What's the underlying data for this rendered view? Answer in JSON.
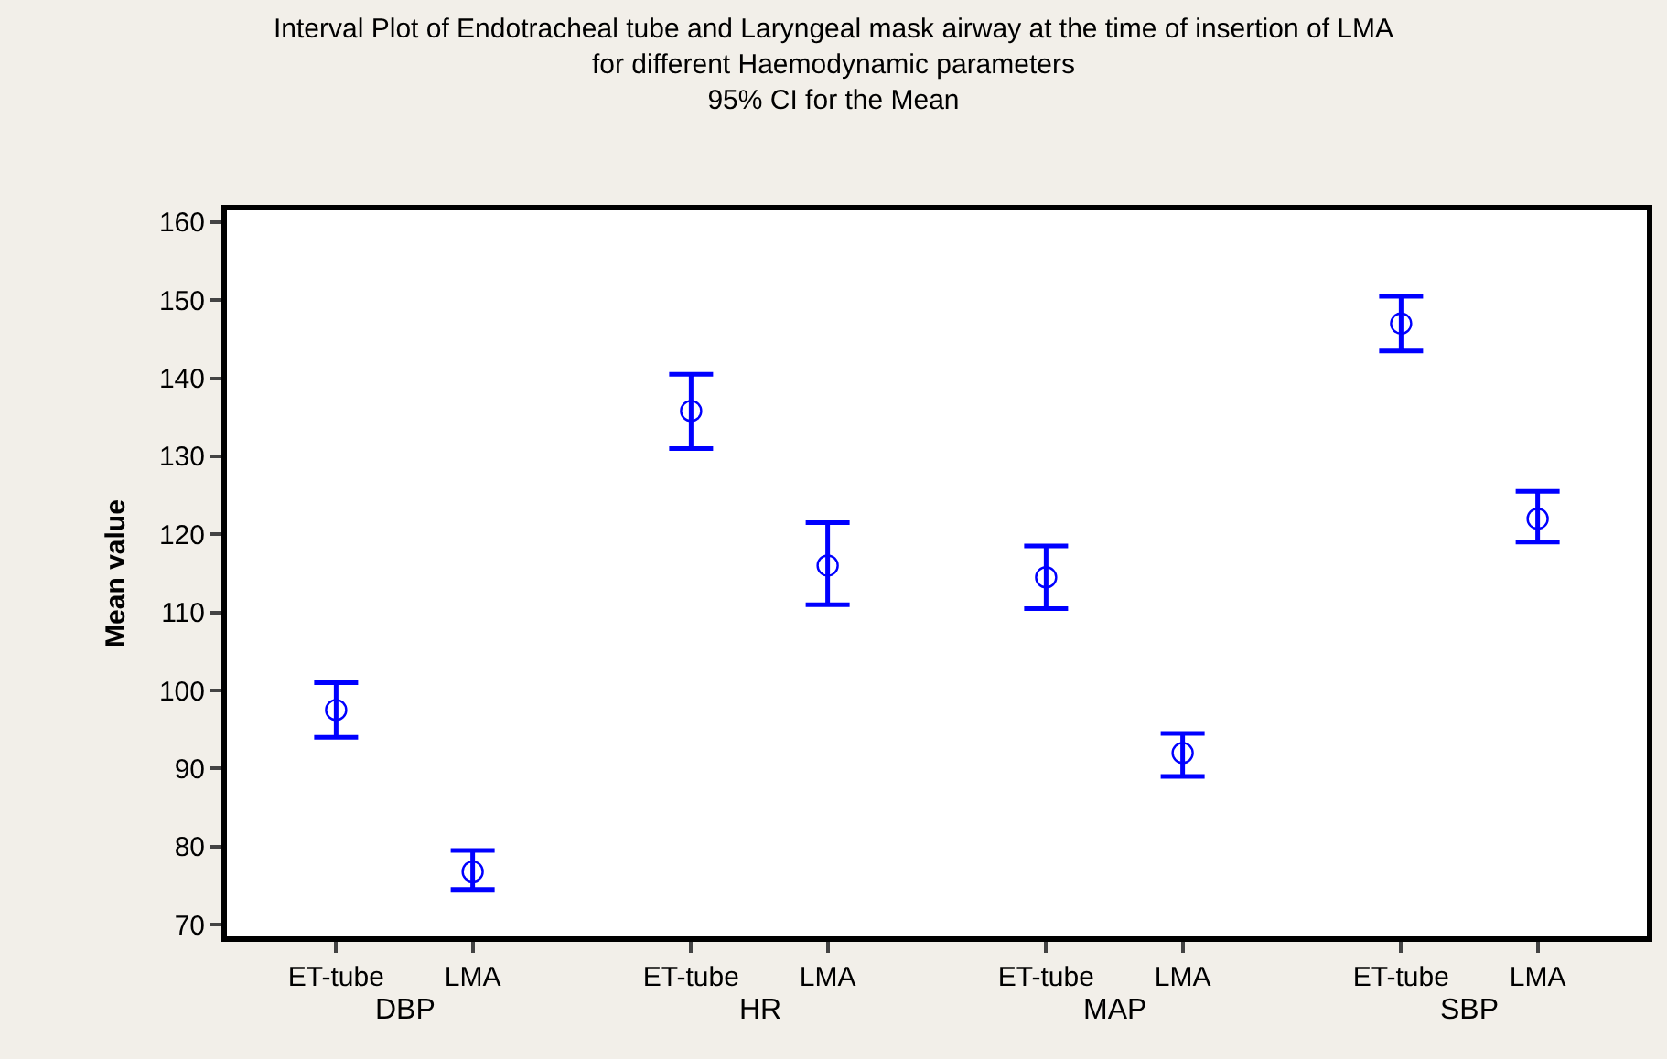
{
  "chart_data": {
    "type": "scatter",
    "title": "Interval Plot of Endotracheal tube and Laryngeal mask airway at the time of insertion of LMA for different Haemodynamic parameters",
    "subtitle": "95% CI for the Mean",
    "ylabel": "Mean value",
    "categories": [
      "ET-tube",
      "LMA",
      "ET-tube",
      "LMA",
      "ET-tube",
      "LMA",
      "ET-tube",
      "LMA"
    ],
    "annotations": [
      "DBP",
      "HR",
      "MAP",
      "SBP"
    ],
    "series": [
      {
        "color": "#0000ff",
        "values": [
          97.5,
          76.8,
          135.8,
          116,
          114.5,
          92,
          147,
          122
        ],
        "errors": [
          [
            94,
            101
          ],
          [
            74.5,
            79.5
          ],
          [
            131,
            140.5
          ],
          [
            111,
            121.5
          ],
          [
            110.5,
            118.5
          ],
          [
            89,
            94.5
          ],
          [
            143.5,
            150.5
          ],
          [
            119,
            125.5
          ]
        ]
      }
    ],
    "ylim": [
      68.5,
      161.5
    ],
    "yticks": [
      70,
      80,
      90,
      100,
      110,
      120,
      130,
      140,
      150,
      160
    ],
    "marker": "circle"
  }
}
